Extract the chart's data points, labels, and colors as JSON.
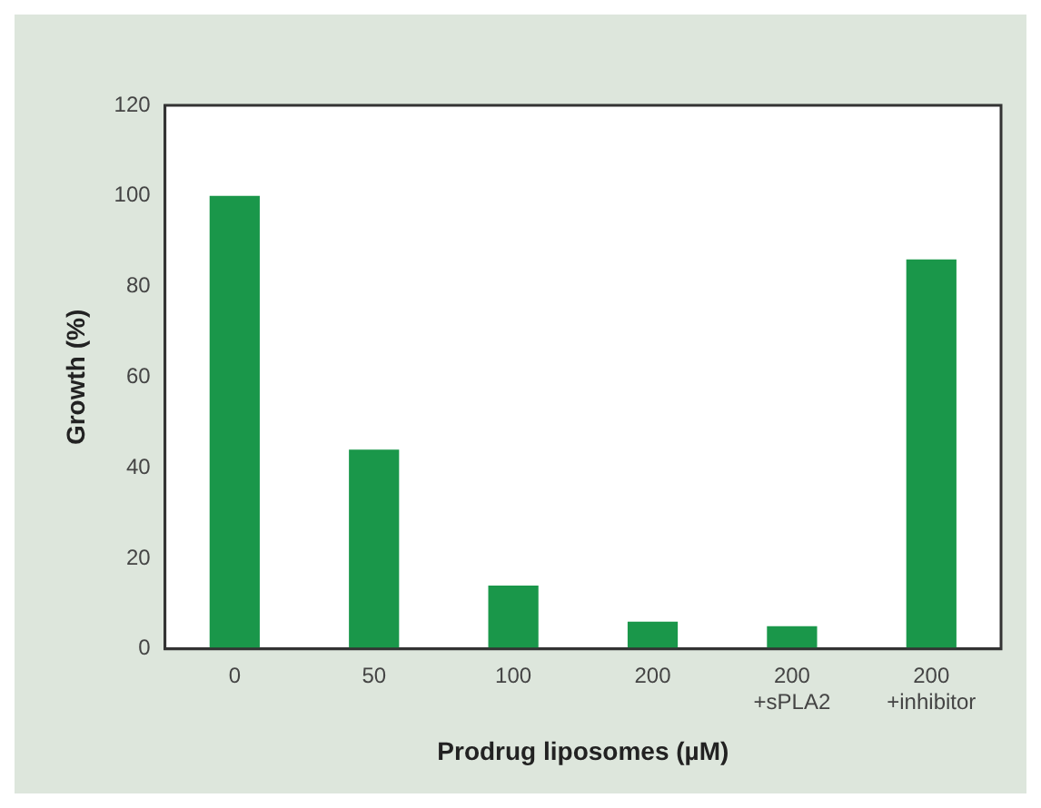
{
  "chart_data": {
    "type": "bar",
    "xlabel": "Prodrug liposomes (µM)",
    "ylabel": "Growth (%)",
    "categories": [
      "0",
      "50",
      "100",
      "200",
      "200\n+sPLA2",
      "200\n+inhibitor"
    ],
    "values": [
      100,
      44,
      14,
      6,
      5,
      86
    ],
    "color": "#1a974a",
    "ylim": [
      0,
      120
    ],
    "yticks": [
      0,
      20,
      40,
      60,
      80,
      100,
      120
    ],
    "grid": false
  }
}
